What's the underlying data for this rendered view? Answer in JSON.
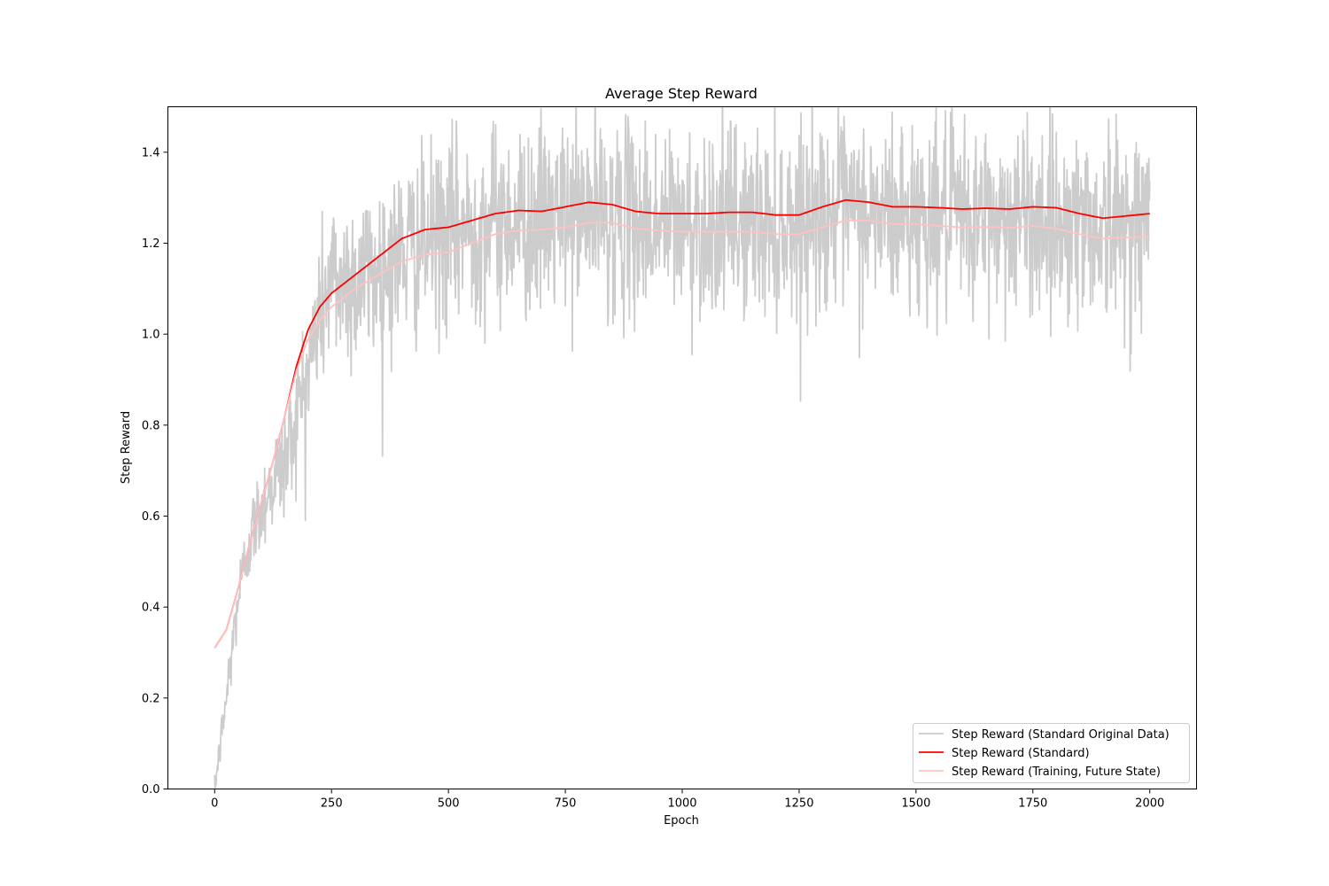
{
  "chart_data": {
    "type": "line",
    "title": "Average Step Reward",
    "xlabel": "Epoch",
    "ylabel": "Step Reward",
    "xlim": [
      -100,
      2100
    ],
    "ylim": [
      0.0,
      1.5
    ],
    "xticks": [
      0,
      250,
      500,
      750,
      1000,
      1250,
      1500,
      1750,
      2000
    ],
    "yticks": [
      0.0,
      0.2,
      0.4,
      0.6,
      0.8,
      1.0,
      1.2,
      1.4
    ],
    "ytick_labels": [
      "0.0",
      "0.2",
      "0.4",
      "0.6",
      "0.8",
      "1.0",
      "1.2",
      "1.4"
    ],
    "grid": false,
    "legend_position": "lower-right",
    "series": [
      {
        "name": "Step Reward (Standard Original Data)",
        "color": "#cccccc",
        "style": "noisy-raw",
        "x": [
          0,
          25,
          50,
          75,
          100,
          125,
          150,
          175,
          200,
          225,
          250,
          300,
          350,
          400,
          450,
          500,
          600,
          700,
          800,
          900,
          1000,
          1100,
          1200,
          1300,
          1400,
          1500,
          1600,
          1700,
          1800,
          1900,
          2000
        ],
        "y": [
          0.0,
          0.2,
          0.42,
          0.55,
          0.62,
          0.68,
          0.72,
          0.82,
          0.92,
          1.05,
          1.12,
          1.12,
          1.14,
          1.18,
          1.2,
          1.22,
          1.25,
          1.25,
          1.27,
          1.25,
          1.24,
          1.25,
          1.24,
          1.27,
          1.26,
          1.26,
          1.25,
          1.26,
          1.25,
          1.24,
          1.25
        ],
        "noise_amplitude": [
          0.02,
          0.06,
          0.07,
          0.08,
          0.09,
          0.1,
          0.12,
          0.13,
          0.14,
          0.16,
          0.17,
          0.18,
          0.18,
          0.18,
          0.18,
          0.19,
          0.19,
          0.19,
          0.19,
          0.19,
          0.19,
          0.19,
          0.19,
          0.19,
          0.19,
          0.19,
          0.19,
          0.19,
          0.19,
          0.19,
          0.19
        ]
      },
      {
        "name": "Step Reward (Standard)",
        "color": "#ff0000",
        "x": [
          0,
          25,
          50,
          75,
          100,
          125,
          150,
          175,
          200,
          225,
          250,
          275,
          300,
          350,
          400,
          450,
          500,
          550,
          600,
          650,
          700,
          750,
          800,
          850,
          900,
          950,
          1000,
          1050,
          1100,
          1150,
          1200,
          1250,
          1300,
          1350,
          1400,
          1450,
          1500,
          1550,
          1600,
          1650,
          1700,
          1750,
          1800,
          1850,
          1900,
          1950,
          2000
        ],
        "y": [
          0.31,
          0.35,
          0.44,
          0.54,
          0.63,
          0.72,
          0.82,
          0.93,
          1.01,
          1.06,
          1.09,
          1.11,
          1.13,
          1.17,
          1.21,
          1.23,
          1.235,
          1.25,
          1.265,
          1.272,
          1.27,
          1.28,
          1.29,
          1.285,
          1.27,
          1.265,
          1.265,
          1.265,
          1.268,
          1.268,
          1.262,
          1.262,
          1.28,
          1.295,
          1.29,
          1.28,
          1.28,
          1.278,
          1.275,
          1.277,
          1.275,
          1.28,
          1.278,
          1.265,
          1.255,
          1.26,
          1.265
        ]
      },
      {
        "name": "Step Reward (Training, Future State)",
        "color": "#ffc2c2",
        "x": [
          0,
          25,
          50,
          75,
          100,
          125,
          150,
          175,
          200,
          225,
          250,
          275,
          300,
          350,
          400,
          450,
          500,
          550,
          600,
          650,
          700,
          750,
          800,
          850,
          900,
          950,
          1000,
          1050,
          1100,
          1150,
          1200,
          1250,
          1300,
          1350,
          1400,
          1450,
          1500,
          1550,
          1600,
          1650,
          1700,
          1750,
          1800,
          1850,
          1900,
          1950,
          2000
        ],
        "y": [
          0.31,
          0.35,
          0.44,
          0.54,
          0.63,
          0.72,
          0.82,
          0.92,
          0.99,
          1.03,
          1.06,
          1.08,
          1.1,
          1.13,
          1.16,
          1.175,
          1.18,
          1.2,
          1.22,
          1.228,
          1.23,
          1.235,
          1.245,
          1.245,
          1.232,
          1.228,
          1.225,
          1.225,
          1.225,
          1.225,
          1.22,
          1.22,
          1.235,
          1.25,
          1.25,
          1.242,
          1.242,
          1.238,
          1.235,
          1.236,
          1.234,
          1.238,
          1.232,
          1.22,
          1.21,
          1.213,
          1.215
        ]
      }
    ]
  }
}
